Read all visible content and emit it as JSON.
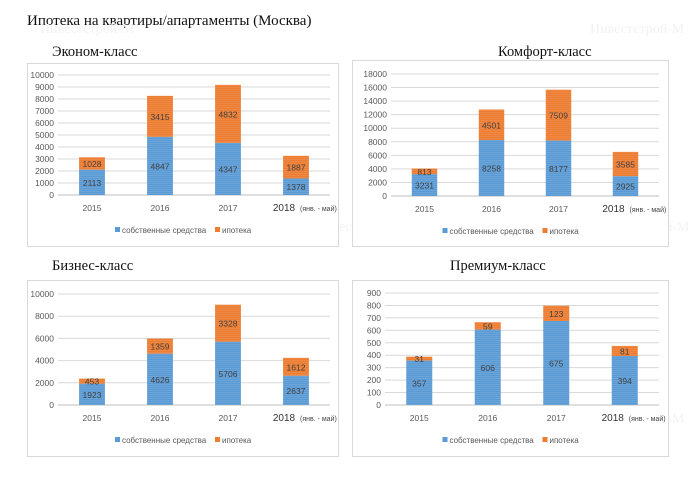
{
  "page_title": "Ипотека на квартиры/апартаменты (Москва)",
  "watermark": "Инвестстрой-М",
  "colors": {
    "own": "#5b9bd5",
    "mortgage": "#ed7d31",
    "grid": "#d9d9d9",
    "axis_text": "#595959"
  },
  "chart_data": [
    {
      "type": "bar",
      "stacked": true,
      "title": "Эконом-класс",
      "categories": [
        "2015",
        "2016",
        "2017",
        "2018"
      ],
      "category_note": "(янв. - май)",
      "ylim": [
        0,
        10000
      ],
      "yticks": [
        "0",
        "1000",
        "2000",
        "3000",
        "4000",
        "5000",
        "6000",
        "7000",
        "8000",
        "9000",
        "10000"
      ],
      "series": [
        {
          "name": "собственные средства",
          "values": [
            2113,
            4847,
            4347,
            1378
          ]
        },
        {
          "name": "ипотека",
          "values": [
            1028,
            3415,
            4832,
            1887
          ]
        }
      ],
      "legend": "bottom"
    },
    {
      "type": "bar",
      "stacked": true,
      "title": "Комфорт-класс",
      "categories": [
        "2015",
        "2016",
        "2017",
        "2018"
      ],
      "category_note": "(янв. - май)",
      "ylim": [
        0,
        18000
      ],
      "yticks": [
        "0",
        "2000",
        "4000",
        "6000",
        "8000",
        "10000",
        "12000",
        "14000",
        "16000",
        "18000"
      ],
      "series": [
        {
          "name": "собственные средства",
          "values": [
            3231,
            8258,
            8177,
            2925
          ]
        },
        {
          "name": "ипотека",
          "values": [
            813,
            4501,
            7509,
            3585
          ]
        }
      ],
      "legend": "bottom"
    },
    {
      "type": "bar",
      "stacked": true,
      "title": "Бизнес-класс",
      "categories": [
        "2015",
        "2016",
        "2017",
        "2018"
      ],
      "category_note": "(янв. - май)",
      "ylim": [
        0,
        10000
      ],
      "yticks": [
        "0",
        "2000",
        "4000",
        "6000",
        "8000",
        "10000"
      ],
      "series": [
        {
          "name": "собственные средства",
          "values": [
            1923,
            4626,
            5706,
            2637
          ]
        },
        {
          "name": "ипотека",
          "values": [
            453,
            1359,
            3328,
            1612
          ]
        }
      ],
      "legend": "bottom"
    },
    {
      "type": "bar",
      "stacked": true,
      "title": "Премиум-класс",
      "categories": [
        "2015",
        "2016",
        "2017",
        "2018"
      ],
      "category_note": "(янв. - май)",
      "ylim": [
        0,
        900
      ],
      "yticks": [
        "0",
        "100",
        "200",
        "300",
        "400",
        "500",
        "600",
        "700",
        "800",
        "900"
      ],
      "series": [
        {
          "name": "собственные средства",
          "values": [
            357,
            606,
            675,
            394
          ]
        },
        {
          "name": "ипотека",
          "values": [
            31,
            59,
            123,
            81
          ]
        }
      ],
      "legend": "bottom"
    }
  ]
}
